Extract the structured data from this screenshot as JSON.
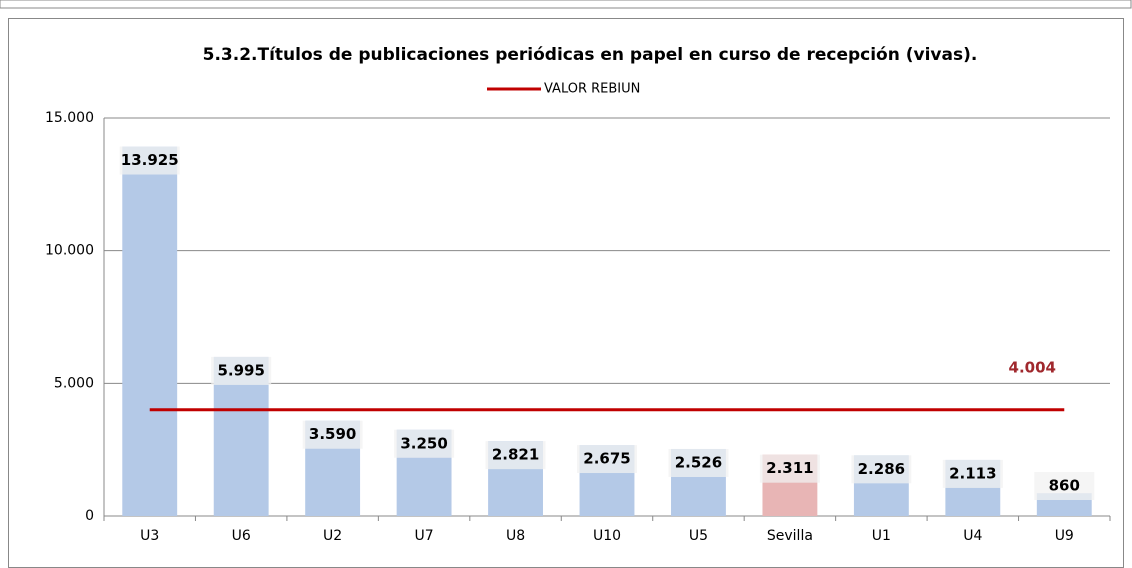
{
  "chart_data": {
    "type": "bar",
    "title": "5.3.2.Títulos de publicaciones periódicas en papel en curso de recepción (vivas).",
    "categories": [
      "U3",
      "U6",
      "U2",
      "U7",
      "U8",
      "U10",
      "U5",
      "Sevilla",
      "U1",
      "U4",
      "U9"
    ],
    "values": [
      13925,
      5995,
      3590,
      3250,
      2821,
      2675,
      2526,
      2311,
      2286,
      2113,
      860
    ],
    "value_labels": [
      "13.925",
      "5.995",
      "3.590",
      "3.250",
      "2.821",
      "2.675",
      "2.526",
      "2.311",
      "2.286",
      "2.113",
      "860"
    ],
    "colors": [
      "#b4c9e7",
      "#b4c9e7",
      "#b4c9e7",
      "#b4c9e7",
      "#b4c9e7",
      "#b4c9e7",
      "#b4c9e7",
      "#e8b5b5",
      "#b4c9e7",
      "#b4c9e7",
      "#b4c9e7"
    ],
    "reference_line": {
      "name": "VALOR REBIUN",
      "value": 4004,
      "value_label": "4.004",
      "color": "#c00000"
    },
    "ylim": [
      0,
      15000
    ],
    "yticks": [
      0,
      {
        "value": 5000,
        "label": "5.000"
      },
      {
        "value": 10000,
        "label": "10.000"
      },
      {
        "value": 15000,
        "label": "15.000"
      }
    ],
    "grid": true
  }
}
